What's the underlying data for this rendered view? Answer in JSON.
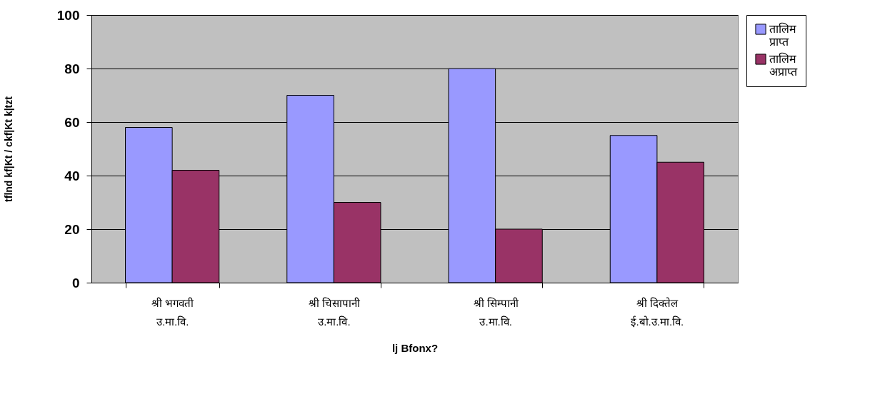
{
  "chart_data": {
    "type": "bar",
    "xlabel": "lj Bfonx?",
    "ylabel": "tflnd kf|Kt / ckf|Kt k|tzt",
    "categories": [
      "श्री भगवती\nउ.मा.वि.",
      "श्री चिसापानी\nउ.मा.वि.",
      "श्री सिम्पानी\nउ.मा.वि.",
      "श्री दिक्तेल\nई.बो.उ.मा.वि."
    ],
    "series": [
      {
        "name": "तालिम प्राप्त",
        "color": "#9999ff",
        "values": [
          58,
          70,
          80,
          55
        ]
      },
      {
        "name": "तालिम अप्राप्त",
        "color": "#993366",
        "values": [
          42,
          30,
          20,
          45
        ]
      }
    ],
    "ylim": [
      0,
      100
    ],
    "yticks": [
      0,
      20,
      40,
      60,
      80,
      100
    ],
    "grid": "y",
    "legend": "right"
  }
}
